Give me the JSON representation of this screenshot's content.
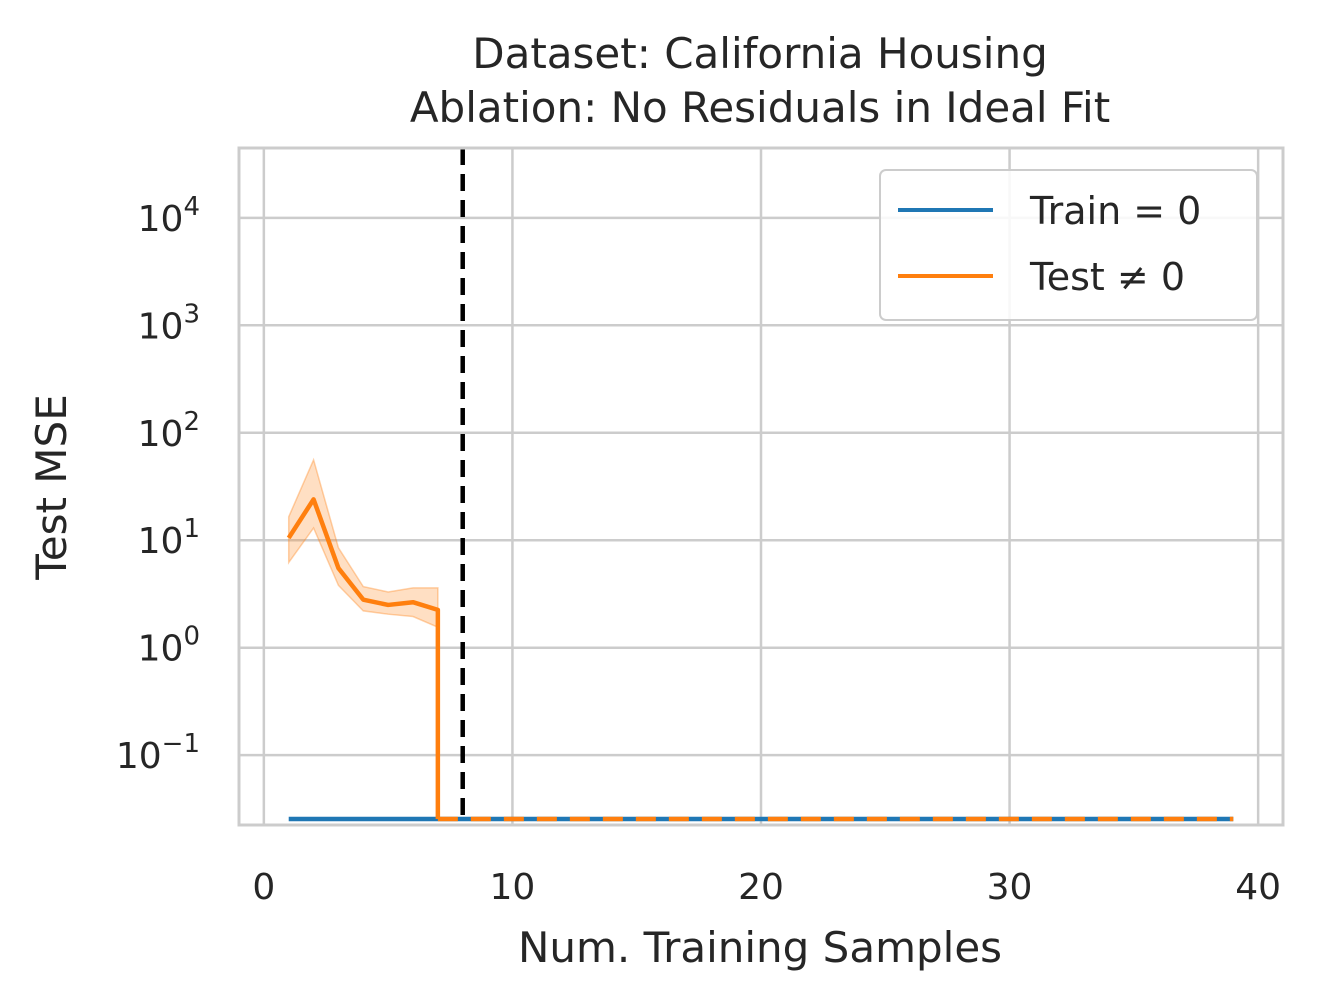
{
  "chart_data": {
    "type": "line",
    "title": "Dataset: California Housing",
    "subtitle": "Ablation: No Residuals in Ideal Fit",
    "xlabel": "Num. Training Samples",
    "ylabel": "Test MSE",
    "xlim": [
      -1,
      41
    ],
    "ylim_log10": [
      -1.65,
      4.65
    ],
    "yscale": "log",
    "grid": true,
    "legend_position": "top-right",
    "x_ticks": [
      {
        "value": 0,
        "label": "0"
      },
      {
        "value": 10,
        "label": "10"
      },
      {
        "value": 20,
        "label": "20"
      },
      {
        "value": 30,
        "label": "30"
      },
      {
        "value": 40,
        "label": "40"
      }
    ],
    "y_ticks": [
      {
        "exp": -1,
        "base": "10",
        "sup": "−1"
      },
      {
        "exp": 0,
        "base": "10",
        "sup": "0"
      },
      {
        "exp": 1,
        "base": "10",
        "sup": "1"
      },
      {
        "exp": 2,
        "base": "10",
        "sup": "2"
      },
      {
        "exp": 3,
        "base": "10",
        "sup": "3"
      },
      {
        "exp": 4,
        "base": "10",
        "sup": "4"
      }
    ],
    "vline": {
      "x": 8,
      "color": "#000000",
      "style": "dashed"
    },
    "series": [
      {
        "name": "Train = 0",
        "color": "#1f77b4",
        "x": [
          1,
          39
        ],
        "y_floor": true
      },
      {
        "name": "Test ≠ 0",
        "color": "#ff7f0e",
        "x": [
          1,
          2,
          3,
          4,
          5,
          6,
          7
        ],
        "y": [
          10.5,
          24,
          5.5,
          2.8,
          2.5,
          2.65,
          2.25
        ],
        "y_lower": [
          6.2,
          13,
          3.8,
          2.2,
          2.05,
          1.95,
          1.55
        ],
        "y_upper": [
          16.5,
          56,
          8.5,
          3.7,
          3.3,
          3.6,
          3.6
        ],
        "drop_to_floor_at": 7,
        "floor_x_end": 39,
        "floor_style": "dashed"
      }
    ]
  },
  "legend": {
    "items": [
      {
        "label": "Train = 0",
        "color": "#1f77b4"
      },
      {
        "label": "Test ≠ 0",
        "color": "#ff7f0e"
      }
    ]
  }
}
